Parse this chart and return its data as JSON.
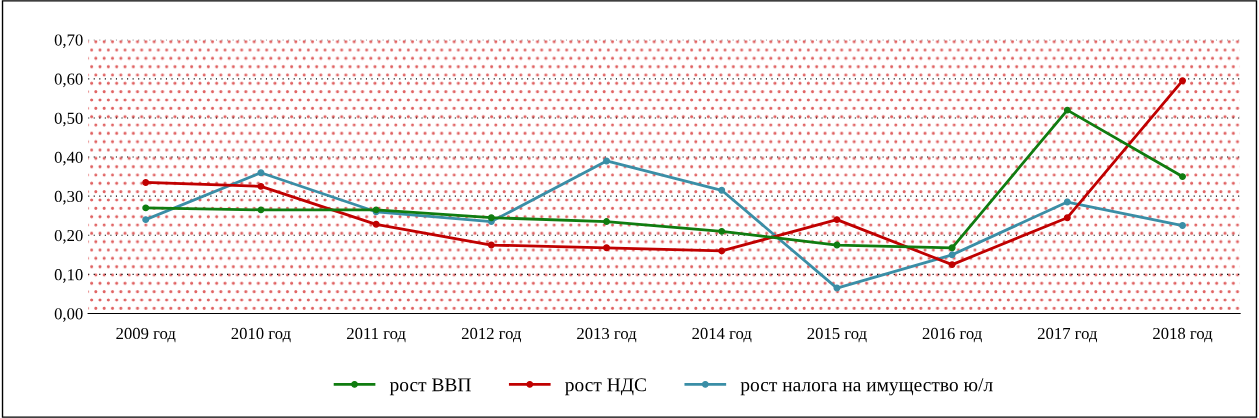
{
  "chart_data": {
    "type": "line",
    "categories": [
      "2009 год",
      "2010 год",
      "2011 год",
      "2012 год",
      "2013 год",
      "2014 год",
      "2015 год",
      "2016 год",
      "2017 год",
      "2018 год"
    ],
    "series": [
      {
        "name": "рост ВВП",
        "color": "#107c10",
        "values": [
          0.27,
          0.265,
          0.265,
          0.245,
          0.235,
          0.21,
          0.175,
          0.168,
          0.52,
          0.35
        ]
      },
      {
        "name": "рост НДС",
        "color": "#c00000",
        "values": [
          0.335,
          0.325,
          0.228,
          0.175,
          0.168,
          0.16,
          0.24,
          0.125,
          0.245,
          0.595
        ]
      },
      {
        "name": "рост налога на имущество ю/л",
        "color": "#3a8ea6",
        "values": [
          0.24,
          0.36,
          0.26,
          0.235,
          0.39,
          0.315,
          0.065,
          0.15,
          0.285,
          0.225
        ]
      }
    ],
    "ylim": [
      0,
      0.7
    ],
    "yticks": [
      {
        "value": 0,
        "label": "0,00"
      },
      {
        "value": 0.1,
        "label": "0,10"
      },
      {
        "value": 0.2,
        "label": "0,20"
      },
      {
        "value": 0.3,
        "label": "0,30"
      },
      {
        "value": 0.4,
        "label": "0,40"
      },
      {
        "value": 0.5,
        "label": "0,50"
      },
      {
        "value": 0.6,
        "label": "0,60"
      },
      {
        "value": 0.7,
        "label": "0,70"
      }
    ],
    "grid": "y",
    "legend": "bottom",
    "marker": "circle",
    "line_style": "solid"
  }
}
